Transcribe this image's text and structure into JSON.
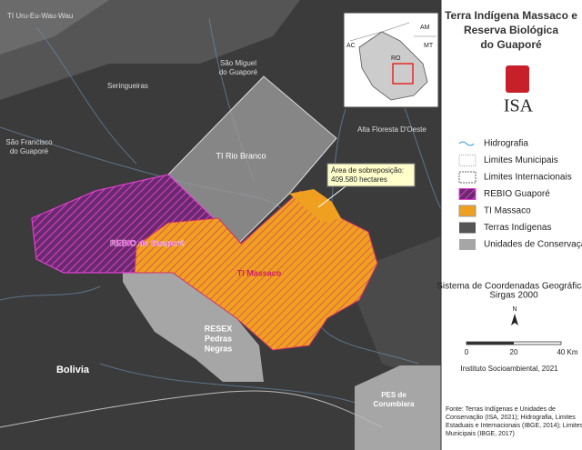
{
  "map": {
    "labels": {
      "ti_uru": "TI Uru-Eu-Wau-Wau",
      "sao_miguel": [
        "São Miguel",
        "do Guaporé"
      ],
      "seringueiras": "Seringueiras",
      "alta_floresta": "Alta Floresta D'Oeste",
      "sao_francisco": [
        "São Francisco",
        "do Guaporé"
      ],
      "ti_rio_branco": "TI Rio Branco",
      "rebio": "REBIO do Guaporé",
      "ti_massaco": "TI Massaco",
      "resex": [
        "RESEX",
        "Pedras",
        "Negras"
      ],
      "bolivia": "Bolivia",
      "pes": [
        "PES de",
        "Corumbiara"
      ]
    },
    "callout": [
      "Área de sobreposição:",
      "409.580 hectares"
    ],
    "inset": {
      "am": "AM",
      "mt": "MT",
      "ac": "AC",
      "ro": "RO"
    }
  },
  "panel": {
    "title": [
      "Terra Indígena Massaco e",
      "Reserva Biológica",
      "do Guaporé"
    ],
    "logo": "ISA",
    "legend": [
      "Hidrografia",
      "Limites Municipais",
      "Limites Internacionais",
      "REBIO Guaporé",
      "TI Massaco",
      "Terras Indígenas",
      "Unidades de Conservação"
    ],
    "crs": [
      "Sistema de Coordenadas Geográficas",
      "Sirgas 2000"
    ],
    "north": "N",
    "scale": [
      "0",
      "20",
      "40 Km"
    ],
    "credit": "Instituto Socioambiental, 2021",
    "source": [
      "Fonte: Terras Indígenas e Unidades de",
      "Conservação (ISA, 2021); Hidrografia, Limites",
      "Estaduais e Internacionais (IBGE, 2014); Limites",
      "Municipais (IBGE, 2017)"
    ]
  }
}
